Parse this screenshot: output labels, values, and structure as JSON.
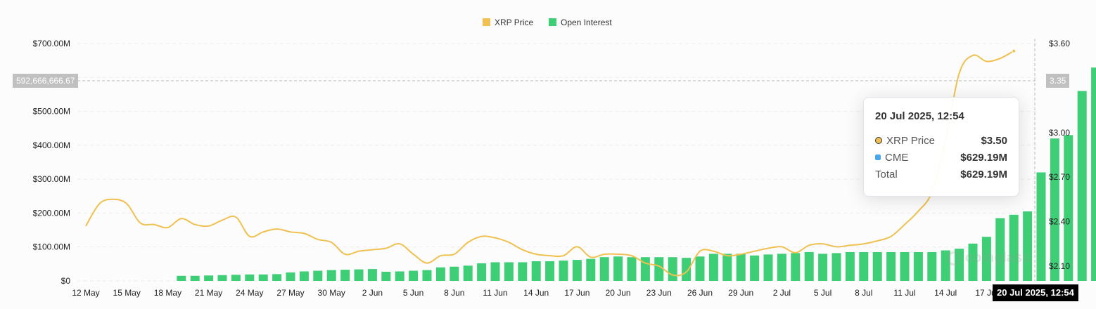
{
  "legend": [
    {
      "label": "XRP Price",
      "color": "#f0c050"
    },
    {
      "label": "Open Interest",
      "color": "#3ecf76"
    }
  ],
  "crosshair": {
    "left_value": "592,666,666.67",
    "right_value": "3.35",
    "x_label": "20 Jul 2025, 12:54"
  },
  "tooltip": {
    "title": "20 Jul 2025, 12:54",
    "rows": [
      {
        "label": "XRP Price",
        "value": "$3.50",
        "icon": "price-dot-icon"
      },
      {
        "label": "CME",
        "value": "$629.19M",
        "icon": "cme-square-icon"
      },
      {
        "label": "Total",
        "value": "$629.19M",
        "icon": ""
      }
    ]
  },
  "watermark": "coinglass",
  "chart_data": {
    "type": "bar",
    "x_ticks": [
      "12 May",
      "15 May",
      "18 May",
      "21 May",
      "24 May",
      "27 May",
      "30 May",
      "2 Jun",
      "5 Jun",
      "8 Jun",
      "11 Jun",
      "14 Jun",
      "17 Jun",
      "20 Jun",
      "23 Jun",
      "26 Jun",
      "29 Jun",
      "2 Jul",
      "5 Jul",
      "8 Jul",
      "11 Jul",
      "14 Jul",
      "17 Jul"
    ],
    "left_axis": {
      "ticks": [
        "$0",
        "$100.00M",
        "$200.00M",
        "$300.00M",
        "$400.00M",
        "$500.00M",
        "$700.00M"
      ],
      "tick_values": [
        0,
        100,
        200,
        300,
        400,
        500,
        700
      ],
      "range": [
        0,
        700
      ]
    },
    "right_axis": {
      "ticks": [
        "$2.10",
        "$2.40",
        "$2.70",
        "$3.00",
        "$3.60"
      ],
      "tick_values": [
        2.1,
        2.4,
        2.7,
        3.0,
        3.6
      ],
      "range": [
        2.0,
        3.6
      ]
    },
    "series": [
      {
        "name": "Open Interest",
        "kind": "bar",
        "color": "#3ecf76",
        "start_date": "19 May",
        "values": [
          15,
          15,
          16,
          17,
          18,
          19,
          19,
          20,
          25,
          28,
          30,
          32,
          33,
          34,
          35,
          27,
          28,
          30,
          32,
          40,
          42,
          45,
          52,
          55,
          55,
          55,
          58,
          58,
          60,
          62,
          65,
          70,
          72,
          70,
          70,
          70,
          70,
          68,
          72,
          80,
          80,
          80,
          75,
          78,
          80,
          82,
          85,
          80,
          82,
          85,
          85,
          85,
          85,
          85,
          85,
          85,
          90,
          95,
          110,
          130,
          185,
          195,
          205,
          320,
          420,
          430,
          560,
          629.19
        ]
      },
      {
        "name": "XRP Price",
        "kind": "line",
        "color": "#f0c050",
        "start_date": "12 May",
        "values": [
          2.37,
          2.52,
          2.55,
          2.52,
          2.39,
          2.38,
          2.36,
          2.42,
          2.38,
          2.37,
          2.41,
          2.43,
          2.3,
          2.33,
          2.35,
          2.33,
          2.32,
          2.28,
          2.26,
          2.18,
          2.2,
          2.21,
          2.22,
          2.25,
          2.18,
          2.12,
          2.17,
          2.18,
          2.26,
          2.3,
          2.29,
          2.26,
          2.21,
          2.18,
          2.17,
          2.17,
          2.23,
          2.16,
          2.18,
          2.18,
          2.17,
          2.12,
          2.1,
          2.04,
          2.06,
          2.2,
          2.2,
          2.17,
          2.18,
          2.2,
          2.22,
          2.23,
          2.19,
          2.24,
          2.25,
          2.23,
          2.24,
          2.25,
          2.27,
          2.3,
          2.38,
          2.47,
          2.6,
          2.95,
          3.4,
          3.52,
          3.48,
          3.5,
          3.55
        ]
      }
    ]
  }
}
